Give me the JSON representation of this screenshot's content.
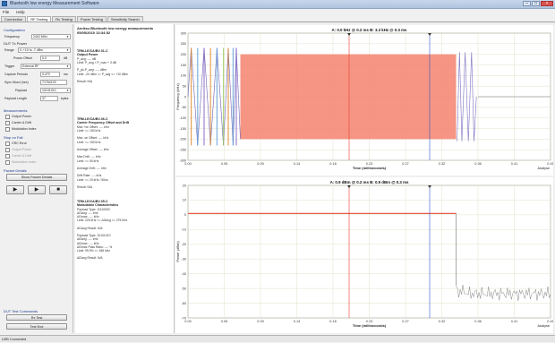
{
  "window": {
    "title": "Bluetooth low energy Measurement Software"
  },
  "menu": [
    "File",
    "Help"
  ],
  "tabs": [
    {
      "label": "Connection",
      "active": false
    },
    {
      "label": "RF Testing",
      "active": true
    },
    {
      "label": "Rx Testing",
      "active": false
    },
    {
      "label": "Power Testing",
      "active": false
    },
    {
      "label": "Sensitivity Search",
      "active": false
    }
  ],
  "config": {
    "heading": "Configuration",
    "frequency_label": "Frequency",
    "frequency_value": "2402 MHz",
    "dut_heading": "DUT Tx Power",
    "range_label": "Range",
    "range_value": "0..+10 to -7 dBm",
    "offset_label": "Power Offset",
    "offset_value": "0.0",
    "offset_unit": "dB",
    "trigger_label": "Trigger",
    "trigger_value": "External RF",
    "capture_label": "Capture Periods",
    "capture_value": "0.470",
    "capture_unit": "ms",
    "sync_label": "Sync Word (hex)",
    "sync_value": "71764129",
    "payload_label": "Payload",
    "payload_value": "10101010",
    "plen_label": "Payload Length",
    "plen_value": "37",
    "plen_unit": "bytes"
  },
  "measurements": {
    "heading": "Measurements",
    "items": [
      {
        "label": "Output Power",
        "enabled": true
      },
      {
        "label": "Carrier & Drift",
        "enabled": true
      },
      {
        "label": "Modulation Index",
        "enabled": true
      }
    ]
  },
  "stop_on_fail": {
    "heading": "Stop on Fail",
    "items": [
      {
        "label": "CRC Error",
        "enabled": true
      },
      {
        "label": "Output Power",
        "enabled": false
      },
      {
        "label": "Carrier & Drift",
        "enabled": false
      },
      {
        "label": "Modulation Index",
        "enabled": false
      }
    ]
  },
  "packet_details": {
    "heading": "Packet Details",
    "button": "Show Packet Details"
  },
  "run_buttons": {
    "single": "▶",
    "continuous": "▶",
    "stop": "■"
  },
  "dut_commands": {
    "heading": "DUT Test Commands",
    "rx_test": "Rx Test",
    "test_end": "Test End"
  },
  "results": {
    "title": "Anritsu Bluetooth low energy measurements 05/05/2010 13:34:52",
    "blocks": [
      {
        "heading": "TRM-LE/CA/BV-01-C\nOutput Power",
        "lines": [
          "P_avg: ---- dB",
          "Limit: P_avg < P_max + 3 dB",
          "",
          "P_pk-P_avg: ---- dBm",
          "Limit: -20 dBm <= P_avg <= +10 dBm",
          "",
          "Result: N/A"
        ]
      },
      {
        "heading": "TRM-LE/CA/BV-06-C\nCarrier Frequency Offset and Drift",
        "lines": [
          "Max +ve Offset: ---- kHz",
          "Limit: <= 150 kHz",
          "",
          "Max -ve Offset: ---- kHz",
          "Limit: <= 150 kHz",
          "",
          "Average Offset: ---- kHz",
          "",
          "Max Drift: ---- kHz",
          "Limit: <= 50 kHz",
          "",
          "Average Drift: ---- kHz",
          "",
          "Drift Rate: ---- kHz",
          "Limit: <= 20 kHz / 50us",
          "",
          "Result: N/A"
        ]
      },
      {
        "heading": "TRM-LE/CA/BV-05-C\nModulation Characteristics",
        "lines": [
          "Payload Type: 11110000",
          "Δf1avg: ---- kHz",
          "Δf1max: ---- kHz",
          "Limit: 225 kHz <= Δf1avg <= 275 kHz",
          "",
          "Δf1avg Result: N/A",
          "",
          "Payload Type: 10101010",
          "Δf2avg: ---- kHz",
          "Δf2max: ---- kHz",
          "Δf2max Pass Ratio: ---- %",
          "Limit: 99.9% >= 185 kHz",
          "",
          "Δf2avg Result: N/A"
        ]
      }
    ]
  },
  "status_bar": "USB Connected",
  "colors": {
    "trace": "#e85a45",
    "marker_a": "#e83b2c",
    "marker_b": "#3355cc",
    "grid": "#d9d9c0"
  },
  "chart_data": [
    {
      "type": "line",
      "title": "",
      "markers": [
        {
          "label": "A: 0.0 kHz @ 0.2 ms",
          "x": 0.2
        },
        {
          "label": "B: 3.3 kHz @ 0.3 ms",
          "x": 0.3
        }
      ],
      "xlabel": "Time (milliseconds)",
      "ylabel": "Frequency (kHz)",
      "xlim": [
        0,
        0.45
      ],
      "ylim": [
        -300,
        300
      ],
      "xticks": [
        "0.00",
        "0.05",
        "0.09",
        "0.14",
        "0.18",
        "0.23",
        "0.27",
        "0.32",
        "0.36",
        "0.41",
        "0.45"
      ],
      "yticks": [
        "300",
        "250",
        "200",
        "150",
        "100",
        "50",
        "0",
        "-50",
        "-100",
        "-150",
        "-200",
        "-250",
        "-300"
      ],
      "yvals": [
        300,
        250,
        200,
        150,
        100,
        50,
        0,
        -50,
        -100,
        -150,
        -200,
        -250,
        -300
      ],
      "corner_label": "Analyse",
      "series": [
        {
          "values_desc": "",
          "band": [
            0.065,
            0.3328,
            -200,
            200
          ]
        }
      ]
    },
    {
      "type": "line",
      "title": "",
      "markers": [
        {
          "label": "A: 0.9 dBm @ 0.2 ms",
          "x": 0.2
        },
        {
          "label": "B: 0.9 dBm @ 0.3 ms",
          "x": 0.3
        }
      ],
      "xlabel": "Time (milliseconds)",
      "ylabel": "Power (dBm)",
      "xlim": [
        0,
        0.45
      ],
      "ylim": [
        -70,
        20
      ],
      "xticks": [
        "0.00",
        "0.05",
        "0.09",
        "0.14",
        "0.18",
        "0.23",
        "0.27",
        "0.32",
        "0.36",
        "0.41",
        "0.45"
      ],
      "yticks": [
        "20",
        "10",
        "0",
        "-10",
        "-20",
        "-30",
        "-40",
        "-50",
        "-60",
        "-70"
      ],
      "yvals": [
        20,
        10,
        0,
        -10,
        -20,
        -30,
        -40,
        -50,
        -60,
        -70
      ],
      "corner_label": "Analyse",
      "power_level": 0.9,
      "burst_end": 0.3328
    }
  ]
}
